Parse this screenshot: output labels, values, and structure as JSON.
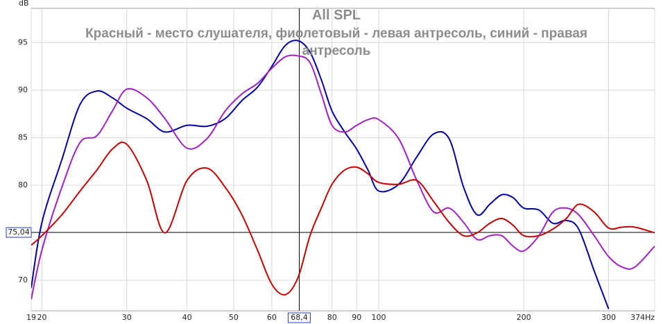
{
  "chart_data": {
    "type": "line",
    "title": "All SPL",
    "subtitle": "Красный - место слушателя, фиолетовый - левая антресоль, синий - правая антресоль",
    "y_label": "dB",
    "xscale": "log",
    "grid": true,
    "xlim": [
      19,
      374
    ],
    "ylim": [
      66.8,
      98.6
    ],
    "xticks": [
      19,
      20,
      30,
      40,
      50,
      60,
      80,
      90,
      100,
      200,
      300,
      {
        "value": 374,
        "label": "374Hz"
      }
    ],
    "yticks": [
      70,
      80,
      85,
      90,
      95
    ],
    "cursor": {
      "x": 68.4,
      "x_label": "68,4",
      "y": 75.04,
      "y_label": "75,04"
    },
    "x": [
      19,
      20,
      22,
      24,
      26,
      28,
      30,
      33,
      36,
      40,
      44,
      48,
      52,
      56,
      60,
      64,
      68,
      72,
      76,
      80,
      85,
      90,
      95,
      100,
      110,
      120,
      130,
      140,
      150,
      160,
      170,
      180,
      190,
      200,
      215,
      230,
      245,
      260,
      280,
      300,
      320,
      340,
      374
    ],
    "series": [
      {
        "color": "#00009c",
        "values": [
          69.2,
          76.1,
          82.7,
          88.5,
          89.9,
          89.2,
          88.1,
          87.0,
          85.6,
          86.3,
          86.2,
          87.0,
          88.9,
          90.3,
          92.5,
          94.7,
          95.2,
          94.0,
          91.1,
          87.8,
          85.6,
          83.8,
          81.6,
          79.4,
          80.1,
          83.0,
          85.4,
          84.9,
          79.8,
          76.9,
          78.0,
          79.0,
          78.7,
          77.6,
          77.4,
          76.0,
          76.3,
          75.4,
          71.0,
          67.0,
          null,
          null,
          null
        ]
      },
      {
        "color": "#a020c0",
        "values": [
          68.0,
          73.2,
          79.8,
          84.5,
          85.2,
          87.8,
          90.1,
          89.2,
          87.0,
          83.9,
          84.9,
          87.8,
          89.6,
          90.7,
          92.3,
          93.5,
          93.6,
          92.9,
          89.6,
          86.3,
          85.6,
          86.3,
          86.9,
          86.9,
          84.9,
          80.5,
          77.2,
          77.6,
          76.1,
          74.3,
          74.7,
          74.7,
          73.6,
          73.1,
          74.7,
          77.2,
          77.6,
          76.9,
          74.7,
          72.5,
          71.4,
          71.4,
          73.6
        ]
      },
      {
        "color": "#c00000",
        "values": [
          73.7,
          74.7,
          76.9,
          79.4,
          81.6,
          83.8,
          84.3,
          80.5,
          75.0,
          80.5,
          81.8,
          79.8,
          76.9,
          73.2,
          69.6,
          68.5,
          70.3,
          74.7,
          77.6,
          80.1,
          81.6,
          81.9,
          81.2,
          80.3,
          80.1,
          80.5,
          78.3,
          76.1,
          74.7,
          75.0,
          76.0,
          76.5,
          75.8,
          74.7,
          74.7,
          75.4,
          76.5,
          78.0,
          77.2,
          75.5,
          75.6,
          75.6,
          75.0
        ]
      }
    ]
  }
}
